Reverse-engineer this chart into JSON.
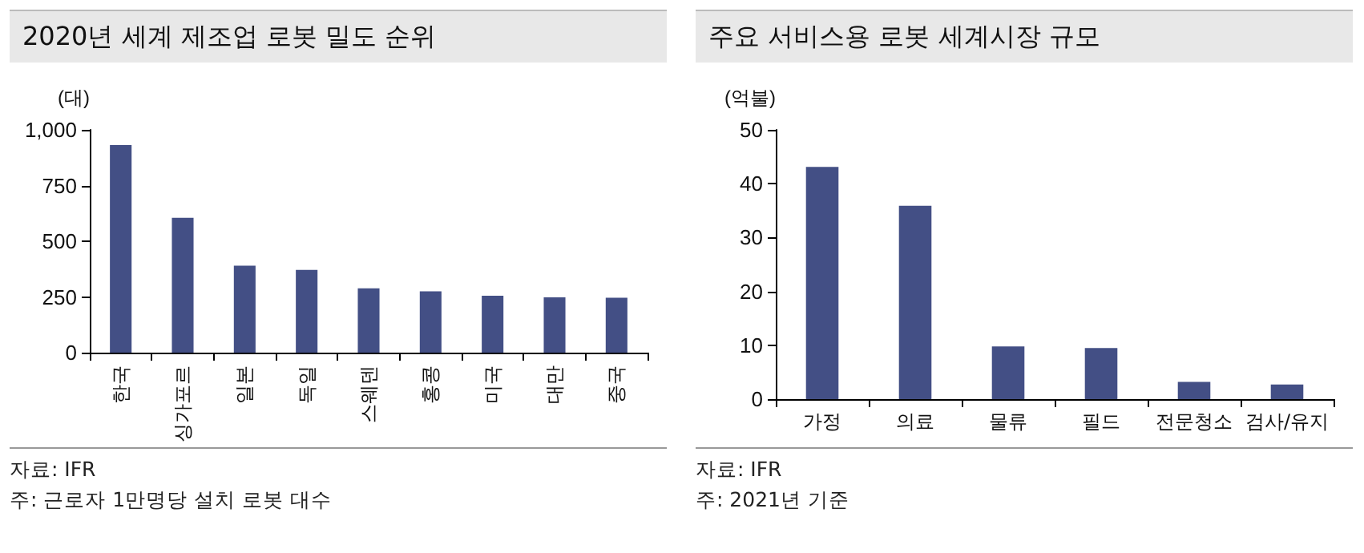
{
  "chart_data": [
    {
      "type": "bar",
      "title": "2020년 세계 제조업 로봇 밀도 순위",
      "ylabel": "(대)",
      "categories": [
        "한국",
        "싱가포르",
        "일본",
        "독일",
        "스웨덴",
        "홍콩",
        "미국",
        "대만",
        "중국"
      ],
      "values": [
        932,
        605,
        390,
        371,
        289,
        275,
        255,
        248,
        246
      ],
      "color": "#434f85",
      "ylim": [
        0,
        1000
      ],
      "yticks": [
        0,
        250,
        500,
        750,
        {
          "value": 1000,
          "label": "1,000"
        }
      ],
      "annotations": [
        "자료: IFR",
        "주: 근로자 1만명당 설치 로봇 대수"
      ]
    },
    {
      "type": "bar",
      "title": "주요 서비스용 로봇 세계시장 규모",
      "ylabel": "(억불)",
      "categories": [
        "가정",
        "의료",
        "물류",
        "필드",
        "전문청소",
        "검사/유지"
      ],
      "values": [
        43.1,
        35.9,
        9.8,
        9.5,
        3.2,
        2.7
      ],
      "color": "#434f85",
      "ylim": [
        0,
        50
      ],
      "yticks": [
        0,
        10,
        20,
        30,
        40,
        50
      ],
      "annotations": [
        "자료: IFR",
        "주: 2021년 기준"
      ]
    }
  ]
}
